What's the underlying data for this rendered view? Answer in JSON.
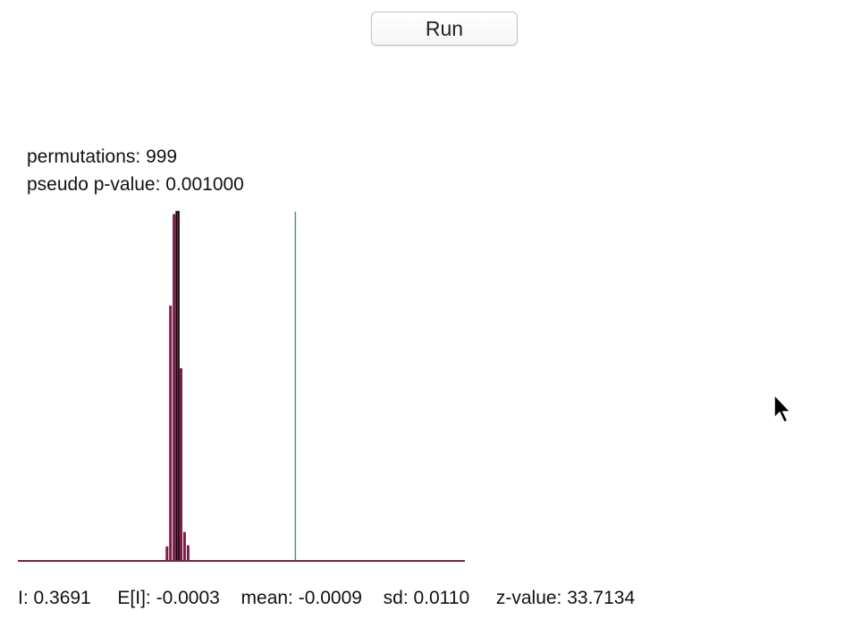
{
  "toolbar": {
    "run_label": "Run"
  },
  "summary": {
    "permutations": "permutations: 999",
    "pseudo_p_value": "pseudo p-value: 0.001000"
  },
  "statistics": {
    "i": "I: 0.3691",
    "expected_i": "E[I]: -0.0003",
    "mean": "mean: -0.0009",
    "sd": "sd: 0.0110",
    "z_value": "z-value: 33.7134"
  },
  "colors": {
    "histogram_bar": "#7a1f48",
    "observed_line": "#4a9a6a",
    "baseline": "#7a1f48",
    "bar_outline": "#000000"
  },
  "chart_data": {
    "type": "bar",
    "x": [
      -0.033,
      -0.022,
      -0.011,
      0.0,
      0.011,
      0.022,
      0.033
    ],
    "values": [
      12,
      212,
      288,
      290,
      160,
      24,
      13
    ],
    "observed_value": 0.3691,
    "xlim": [
      -0.5,
      0.9
    ],
    "ylim": [
      0,
      290
    ],
    "title": "",
    "xlabel": "",
    "ylabel": ""
  }
}
